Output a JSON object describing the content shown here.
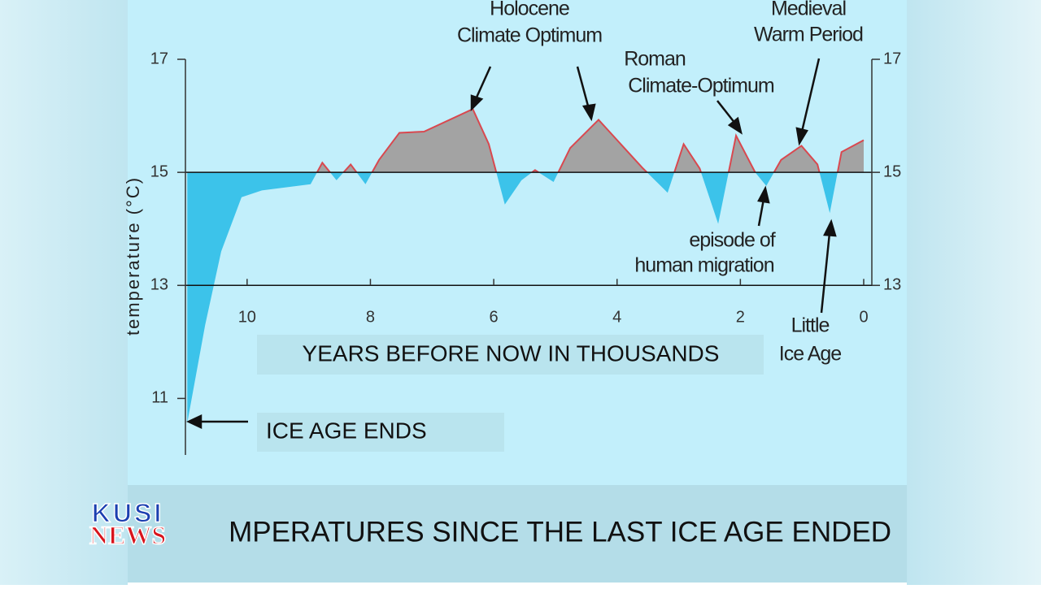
{
  "chart_data": {
    "type": "area",
    "y_label": "temperature (°C)",
    "x": [
      10.97,
      10.68,
      10.42,
      10.09,
      9.76,
      8.97,
      8.78,
      8.55,
      8.32,
      8.08,
      7.86,
      7.53,
      7.13,
      6.34,
      6.08,
      5.82,
      5.55,
      5.33,
      5.03,
      4.76,
      4.3,
      3.58,
      3.18,
      2.92,
      2.66,
      2.36,
      2.07,
      1.76,
      1.58,
      1.34,
      1.01,
      0.75,
      0.55,
      0.36,
      0
    ],
    "values": [
      10.57,
      12.3,
      13.6,
      14.56,
      14.68,
      14.79,
      15.17,
      14.86,
      15.14,
      14.79,
      15.22,
      15.7,
      15.72,
      16.12,
      15.5,
      14.43,
      14.86,
      15.04,
      14.83,
      15.43,
      15.93,
      15.07,
      14.64,
      15.5,
      15.07,
      14.09,
      15.65,
      15.0,
      14.76,
      15.22,
      15.47,
      15.14,
      14.28,
      15.36,
      15.57
    ],
    "baseline": 15,
    "color_above": "#a3a3a3",
    "color_below": "#3cc3ea",
    "line_color": "#d9484f",
    "xlim": [
      11,
      0
    ],
    "xticks": [
      10,
      8,
      6,
      4,
      2,
      0
    ],
    "ylim": [
      10,
      17
    ],
    "yticks": [
      11,
      13,
      15,
      17
    ],
    "y2ticks": [
      13,
      15,
      17
    ],
    "hlines": [
      13,
      15
    ],
    "annotations": [
      {
        "lines": [
          "Holocene",
          "Climate Optimum"
        ]
      },
      {
        "lines": [
          "Medieval",
          "Warm Period"
        ]
      },
      {
        "lines": [
          "Roman",
          "Climate-Optimum"
        ]
      },
      {
        "lines": [
          "episode of",
          "human migration"
        ]
      },
      {
        "lines": [
          "Little",
          "Ice Age"
        ]
      }
    ],
    "x_label": "YEARS BEFORE NOW IN THOUSANDS",
    "callout": "ICE AGE ENDS"
  },
  "caption": "MPERATURES SINCE THE LAST ICE AGE ENDED",
  "logo": {
    "top": "KUSI",
    "bottom": "NEWS"
  }
}
